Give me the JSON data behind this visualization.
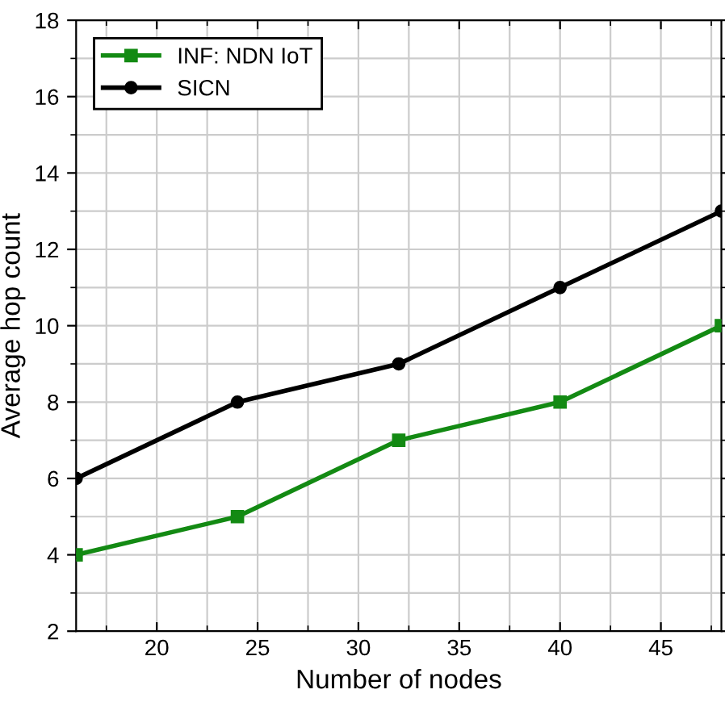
{
  "chart_data": {
    "type": "line",
    "xlabel": "Number of nodes",
    "ylabel": "Average hop count",
    "x": [
      16,
      24,
      32,
      40,
      48
    ],
    "series": [
      {
        "name": "INF: NDN IoT",
        "color": "#138a13",
        "marker": "square",
        "values": [
          4,
          5,
          7,
          8,
          10
        ]
      },
      {
        "name": "SICN",
        "color": "#000000",
        "marker": "circle",
        "values": [
          6,
          8,
          9,
          11,
          13
        ]
      }
    ],
    "xlim": [
      16,
      48
    ],
    "xticks": [
      20,
      25,
      30,
      35,
      40,
      45
    ],
    "ylim": [
      2,
      18
    ],
    "yticks": [
      2,
      4,
      6,
      8,
      10,
      12,
      14,
      16,
      18
    ],
    "grid": true,
    "legend": "top left",
    "line_style": "solid"
  }
}
